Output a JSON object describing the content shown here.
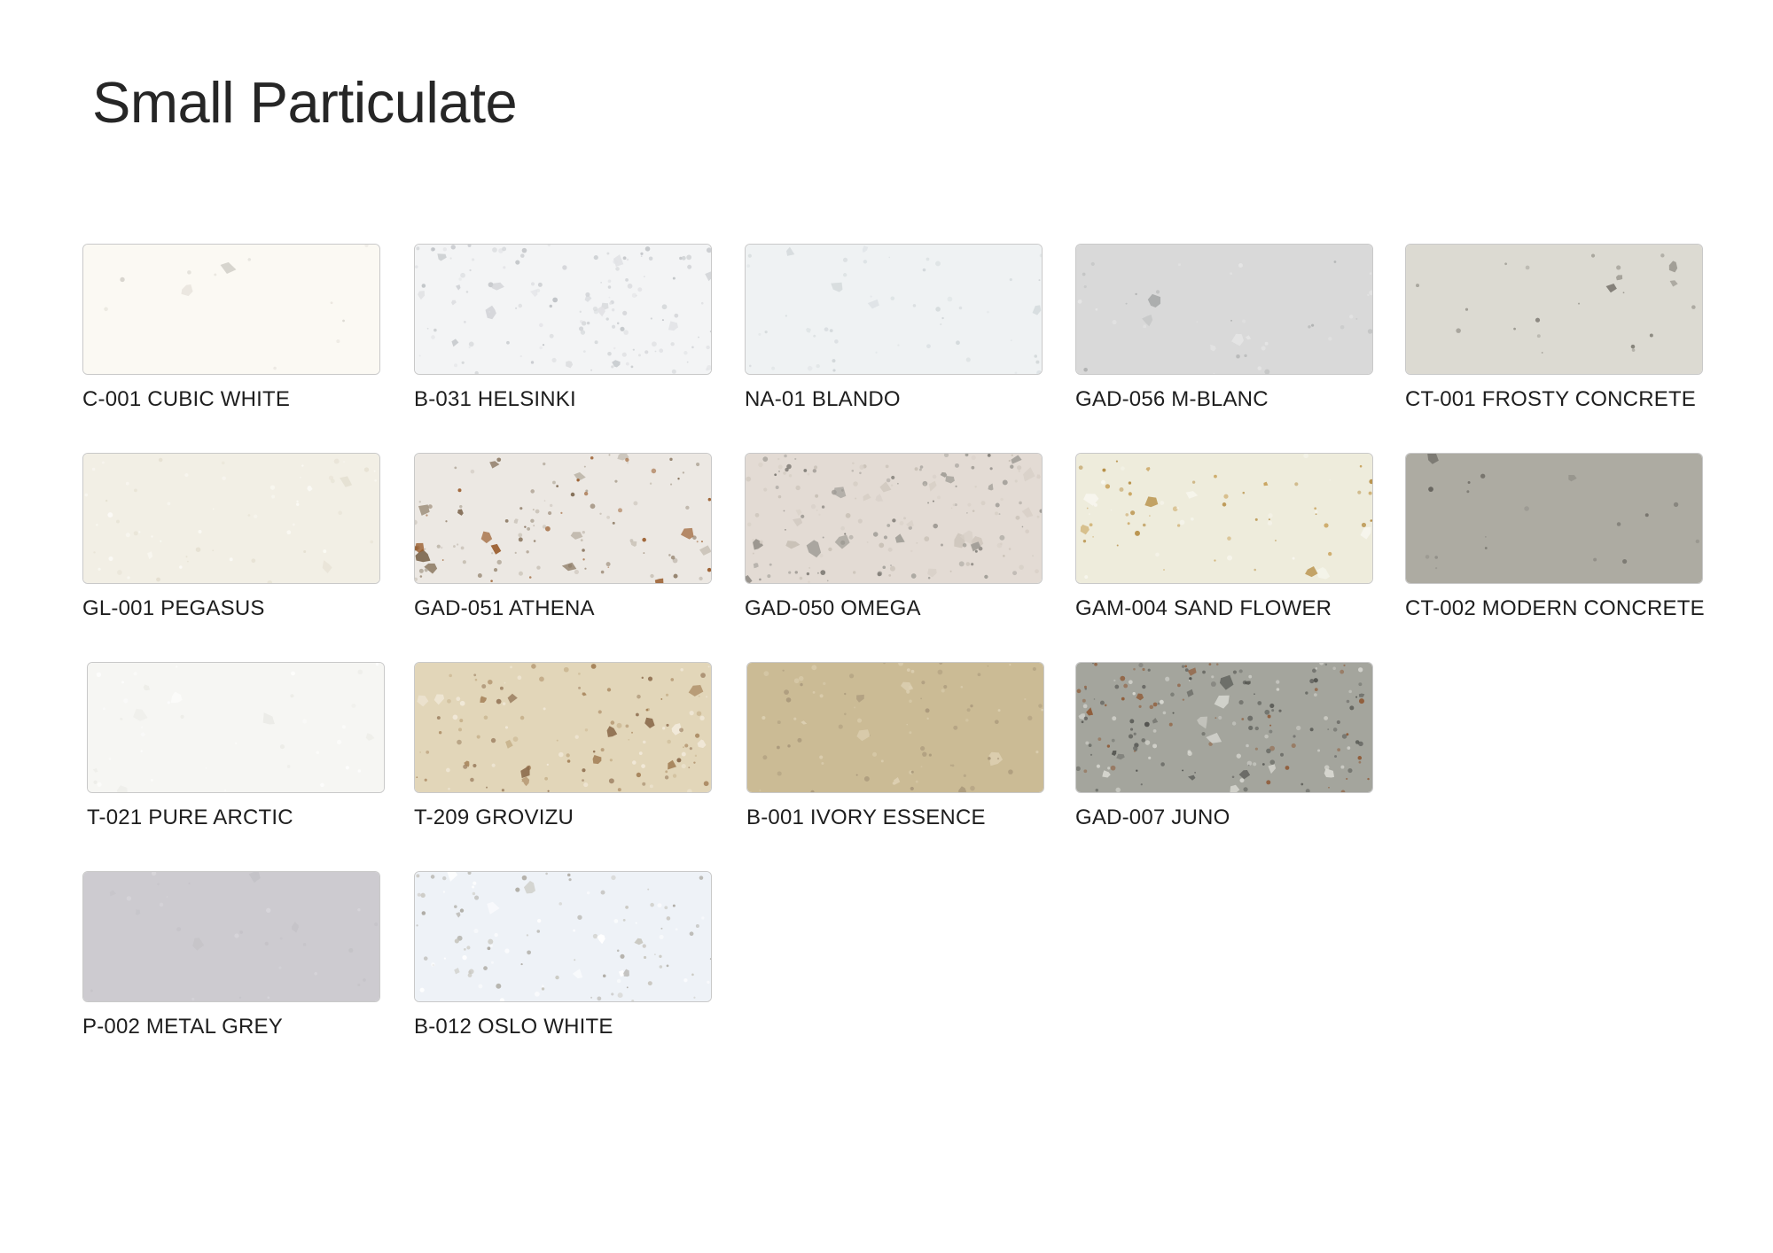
{
  "page": {
    "title": "Small Particulate"
  },
  "swatches": [
    {
      "code": "C-001 CUBIC WHITE",
      "base": "#fbf9f3",
      "chips": [
        "#e6e3dc",
        "#d5d2cb"
      ],
      "density": 12
    },
    {
      "code": "B-031 HELSINKI",
      "base": "#f3f4f5",
      "chips": [
        "#d3d5d8",
        "#bfc2c6",
        "#e1e2e5"
      ],
      "density": 140
    },
    {
      "code": "NA-01 BLANDO",
      "base": "#eff2f3",
      "chips": [
        "#dde2e4",
        "#cfd5d7"
      ],
      "density": 50
    },
    {
      "code": "GAD-056 M-BLANC",
      "base": "#d9d9d9",
      "chips": [
        "#a9abab",
        "#c2c3c3",
        "#e7e7e7"
      ],
      "density": 40
    },
    {
      "code": "CT-001 FROSTY CONCRETE",
      "base": "#dcdad2",
      "chips": [
        "#7d7a72",
        "#9b9890"
      ],
      "density": 22
    },
    {
      "code": "GL-001 PEGASUS",
      "base": "#f2efe5",
      "chips": [
        "#e4dfd0",
        "#fbfaf5"
      ],
      "density": 60
    },
    {
      "code": "GAD-051 ATHENA",
      "base": "#ece8e3",
      "chips": [
        "#9a5c2c",
        "#c9c2b8",
        "#b0a698",
        "#7f6a52"
      ],
      "density": 120
    },
    {
      "code": "GAD-050 OMEGA",
      "base": "#e3dbd4",
      "chips": [
        "#9f9c96",
        "#c8c0b6",
        "#7d7a74",
        "#d7cfc6"
      ],
      "density": 180
    },
    {
      "code": "GAM-004 SAND FLOWER",
      "base": "#eeecdc",
      "chips": [
        "#c9a35c",
        "#b48a3e",
        "#f7f6ee"
      ],
      "density": 70
    },
    {
      "code": "CT-002 MODERN CONCRETE",
      "base": "#adaba2",
      "chips": [
        "#5f5d57",
        "#8e8c85"
      ],
      "density": 18
    },
    {
      "code": "T-021 PURE ARCTIC",
      "base": "#f6f6f3",
      "chips": [
        "#ebebe6",
        "#fdfdfc"
      ],
      "density": 40
    },
    {
      "code": "T-209 GROVIZU",
      "base": "#e2d6b9",
      "chips": [
        "#a37f56",
        "#f2eadb",
        "#8c6c4d",
        "#c7b28c"
      ],
      "density": 130
    },
    {
      "code": "B-001 IVORY ESSENCE",
      "base": "#cbbb95",
      "chips": [
        "#a8977a",
        "#dccfb1"
      ],
      "density": 90
    },
    {
      "code": "GAD-007 JUNO",
      "base": "#a4a59d",
      "chips": [
        "#6a6b66",
        "#d8d8d2",
        "#4c4d49",
        "#8f5a37"
      ],
      "density": 190
    },
    {
      "code": "P-002 METAL GREY",
      "base": "#cdcbd0",
      "chips": [
        "#d7d5da",
        "#c4c2c7"
      ],
      "density": 30
    },
    {
      "code": "B-012 OSLO WHITE",
      "base": "#eef2f7",
      "chips": [
        "#c7c5bd",
        "#aaa79f",
        "#ffffff"
      ],
      "density": 110
    }
  ]
}
